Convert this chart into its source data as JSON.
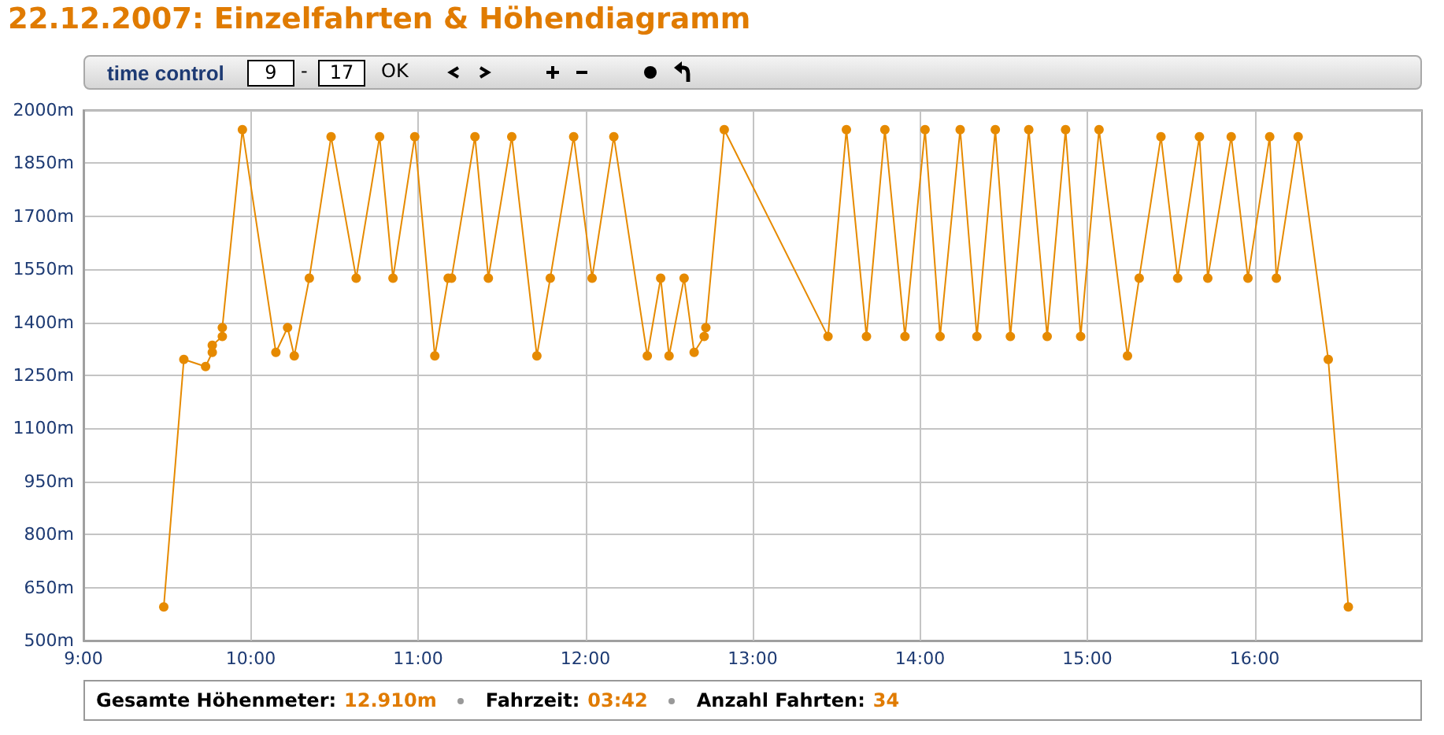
{
  "chart_data": {
    "type": "line",
    "title": "22.12.2007: Einzelfahrten & Höhendiagramm",
    "annotations": [
      "time control",
      "9",
      "-",
      "17",
      "OK",
      "Gesamte Höhenmeter:",
      "12.910m",
      "Fahrzeit:",
      "03:42",
      "Anzahl Fahrten:",
      "34"
    ],
    "x": [
      9.48,
      9.6,
      9.73,
      9.77,
      9.77,
      9.83,
      9.83,
      9.95,
      10.15,
      10.22,
      10.26,
      10.35,
      10.48,
      10.63,
      10.77,
      10.85,
      10.98,
      11.1,
      11.18,
      11.2,
      11.34,
      11.42,
      11.56,
      11.71,
      11.79,
      11.93,
      12.04,
      12.17,
      12.37,
      12.45,
      12.5,
      12.59,
      12.65,
      12.71,
      12.72,
      12.83,
      13.45,
      13.56,
      13.68,
      13.79,
      13.91,
      14.03,
      14.12,
      14.24,
      14.34,
      14.45,
      14.54,
      14.65,
      14.76,
      14.87,
      14.96,
      15.07,
      15.24,
      15.31,
      15.44,
      15.54,
      15.67,
      15.72,
      15.86,
      15.96,
      16.09,
      16.13,
      16.26,
      16.44,
      16.56
    ],
    "series": [
      {
        "color": "#e68a00",
        "values": [
          595,
          1295,
          1275,
          1315,
          1335,
          1360,
          1385,
          1945,
          1315,
          1385,
          1305,
          1525,
          1925,
          1525,
          1925,
          1525,
          1925,
          1305,
          1525,
          1525,
          1925,
          1525,
          1925,
          1305,
          1525,
          1925,
          1525,
          1925,
          1305,
          1525,
          1305,
          1525,
          1315,
          1360,
          1385,
          1945,
          1360,
          1945,
          1360,
          1945,
          1360,
          1945,
          1360,
          1945,
          1360,
          1945,
          1360,
          1945,
          1360,
          1945,
          1360,
          1945,
          1305,
          1525,
          1925,
          1525,
          1925,
          1525,
          1925,
          1525,
          1925,
          1525,
          1925,
          1295,
          595
        ]
      }
    ],
    "xlim": [
      9,
      17
    ],
    "xticks": [
      {
        "value": 9,
        "label": "9:00"
      },
      {
        "value": 10,
        "label": "10:00"
      },
      {
        "value": 11,
        "label": "11:00"
      },
      {
        "value": 12,
        "label": "12:00"
      },
      {
        "value": 13,
        "label": "13:00"
      },
      {
        "value": 14,
        "label": "14:00"
      },
      {
        "value": 15,
        "label": "15:00"
      },
      {
        "value": 16,
        "label": "16:00"
      }
    ],
    "ylim": [
      500,
      2000
    ],
    "yticks": [
      {
        "value": 500,
        "label": "500m"
      },
      {
        "value": 650,
        "label": "650m"
      },
      {
        "value": 800,
        "label": "800m"
      },
      {
        "value": 950,
        "label": "950m"
      },
      {
        "value": 1100,
        "label": "1100m"
      },
      {
        "value": 1250,
        "label": "1250m"
      },
      {
        "value": 1400,
        "label": "1400m"
      },
      {
        "value": 1550,
        "label": "1550m"
      },
      {
        "value": 1700,
        "label": "1700m"
      },
      {
        "value": 1850,
        "label": "1850m"
      },
      {
        "value": 2000,
        "label": "2000m"
      }
    ],
    "grid": true,
    "marker": "circle"
  }
}
